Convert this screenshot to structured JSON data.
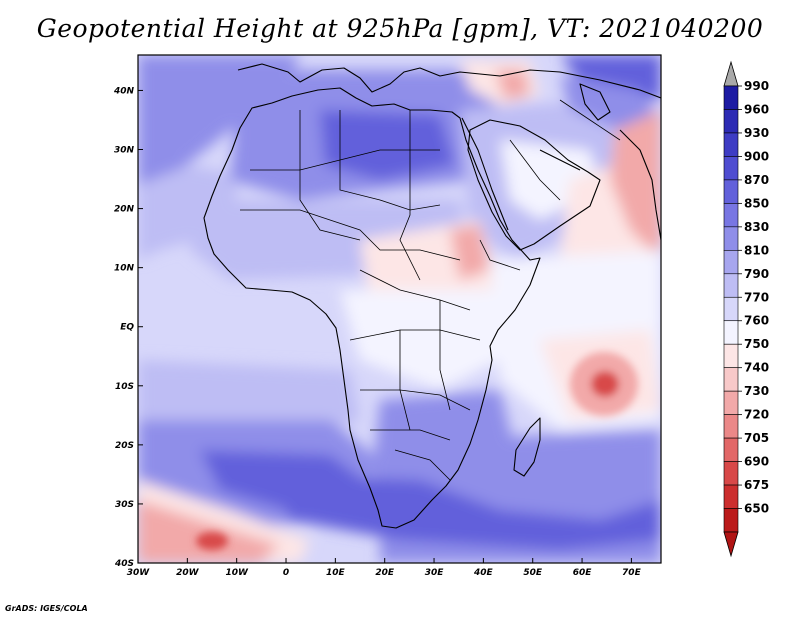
{
  "title": "Geopotential Height at 925hPa [gpm], VT: 2021040200",
  "credit": "GrADS: IGES/COLA",
  "map": {
    "lon_range": [
      -30,
      76
    ],
    "lat_range": [
      -40,
      46
    ],
    "lon_ticks": [
      {
        "lon": -30,
        "label": "30W"
      },
      {
        "lon": -20,
        "label": "20W"
      },
      {
        "lon": -10,
        "label": "10W"
      },
      {
        "lon": 0,
        "label": "0"
      },
      {
        "lon": 10,
        "label": "10E"
      },
      {
        "lon": 20,
        "label": "20E"
      },
      {
        "lon": 30,
        "label": "30E"
      },
      {
        "lon": 40,
        "label": "40E"
      },
      {
        "lon": 50,
        "label": "50E"
      },
      {
        "lon": 60,
        "label": "60E"
      },
      {
        "lon": 70,
        "label": "70E"
      }
    ],
    "lat_ticks": [
      {
        "lat": 40,
        "label": "40N"
      },
      {
        "lat": 30,
        "label": "30N"
      },
      {
        "lat": 20,
        "label": "20N"
      },
      {
        "lat": 10,
        "label": "10N"
      },
      {
        "lat": 0,
        "label": "EQ"
      },
      {
        "lat": -10,
        "label": "10S"
      },
      {
        "lat": -20,
        "label": "20S"
      },
      {
        "lat": -30,
        "label": "30S"
      },
      {
        "lat": -40,
        "label": "40S"
      }
    ]
  },
  "colorbar": {
    "levels": [
      "990",
      "960",
      "930",
      "900",
      "870",
      "850",
      "830",
      "810",
      "790",
      "770",
      "760",
      "750",
      "740",
      "730",
      "720",
      "705",
      "690",
      "675",
      "650"
    ],
    "colors": [
      "#1d1ba3",
      "#2d2bb4",
      "#3e3cc4",
      "#4f4dd1",
      "#6261db",
      "#7876e3",
      "#8f8ee9",
      "#a7a6ef",
      "#bebdf4",
      "#d7d7fa",
      "#f4f4ff",
      "#fde6e6",
      "#f8c9c9",
      "#f2a9a9",
      "#eb8888",
      "#e26767",
      "#d84848",
      "#cc2e2e",
      "#bb1a1a"
    ],
    "top_arrow_color": "#a9a9a9",
    "bottom_arrow_color": "#b01414"
  },
  "colors": {
    "ocean_base": "#d7d7fa",
    "land_base": "#d3d3f8",
    "high_band": "#6261db",
    "mid_band": "#8f8ee9",
    "light_band": "#bebdf4",
    "low_red": "#f2a9a9",
    "very_low_red": "#d84848",
    "near_white": "#f4f4ff",
    "pale_red": "#fde6e6"
  }
}
